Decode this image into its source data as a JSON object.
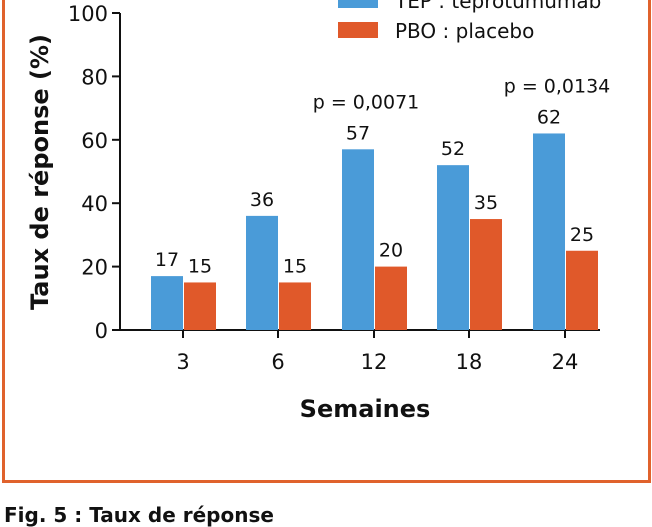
{
  "chart_data": {
    "type": "bar",
    "categories": [
      "3",
      "6",
      "12",
      "18",
      "24"
    ],
    "series": [
      {
        "name": "TEP : teprotumumab",
        "color": "#4a9bd8",
        "values": [
          17,
          36,
          57,
          52,
          62
        ]
      },
      {
        "name": "PBO : placebo",
        "color": "#e0592a",
        "values": [
          15,
          15,
          20,
          35,
          25
        ]
      }
    ],
    "xlabel": "Semaines",
    "ylabel": "Taux de réponse (%)",
    "ylim": [
      0,
      100
    ],
    "yticks": [
      0,
      20,
      40,
      60,
      80,
      100
    ],
    "annotations": [
      {
        "category": "12",
        "text": "p = 0,0071"
      },
      {
        "category": "24",
        "text": "p = 0,0134"
      }
    ],
    "legend": "top-right",
    "grid": false,
    "frame_color": "#e0622c"
  },
  "caption": "Fig. 5 : Taux de réponse"
}
